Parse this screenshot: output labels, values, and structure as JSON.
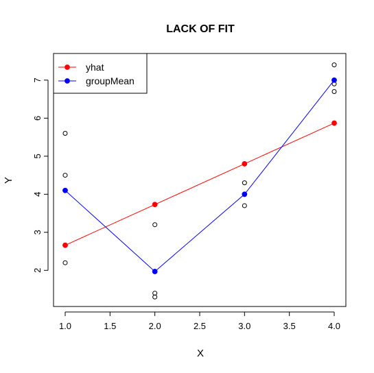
{
  "chart_data": {
    "type": "line",
    "title": "LACK OF FIT",
    "xlabel": "X",
    "ylabel": "Y",
    "xlim": [
      0.87,
      4.13
    ],
    "ylim": [
      1.05,
      7.7
    ],
    "xticks": [
      "1.0",
      "1.5",
      "2.0",
      "2.5",
      "3.0",
      "3.5",
      "4.0"
    ],
    "yticks": [
      "2",
      "3",
      "4",
      "5",
      "6",
      "7"
    ],
    "grid": false,
    "legend_position": "top-left",
    "observations": {
      "x": [
        1,
        1,
        1,
        1,
        2,
        2,
        2,
        3,
        3,
        3,
        4,
        4,
        4
      ],
      "y": [
        5.6,
        4.5,
        4.1,
        2.2,
        3.2,
        1.4,
        1.3,
        4.3,
        4.0,
        3.7,
        7.4,
        6.9,
        6.7
      ]
    },
    "x": [
      1,
      2,
      3,
      4
    ],
    "series": [
      {
        "name": "yhat",
        "color": "#ff0000",
        "values": [
          2.66,
          3.73,
          4.8,
          5.87
        ]
      },
      {
        "name": "groupMean",
        "color": "#0000ff",
        "values": [
          4.1,
          1.97,
          4.0,
          7.0
        ]
      }
    ]
  }
}
